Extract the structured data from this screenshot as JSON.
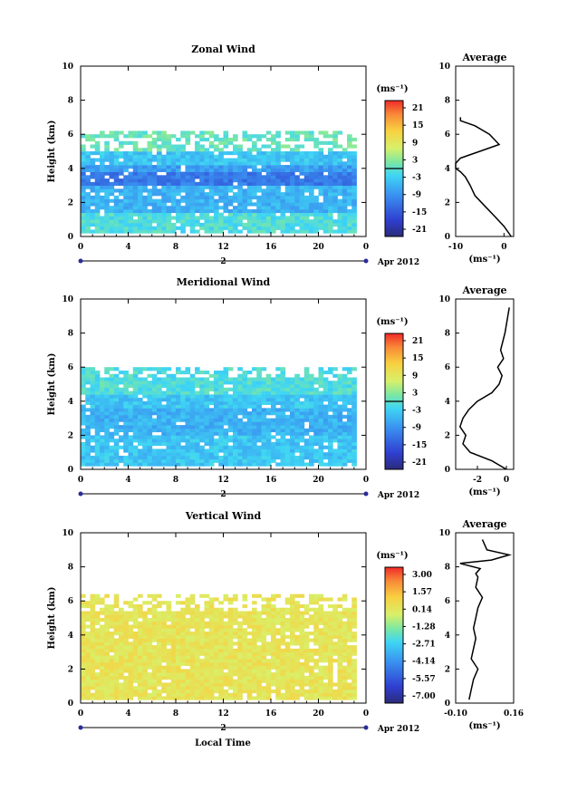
{
  "panels": [
    {
      "title": "Zonal Wind",
      "ylabel": "Height (km)",
      "yticks": [
        "0",
        "2",
        "4",
        "6",
        "8",
        "10"
      ],
      "xticks": [
        "0",
        "4",
        "8",
        "12",
        "16",
        "20",
        "0"
      ],
      "day": "2",
      "date": "Apr 2012",
      "colorbar": {
        "unit": "(ms⁻¹)",
        "labels": [
          "21",
          "15",
          "9",
          "3",
          "-3",
          "-9",
          "-15",
          "-21"
        ],
        "range": [
          -24,
          24
        ],
        "zero_line": 0
      },
      "average": {
        "title": "Average",
        "xticks": [
          "-10",
          "0"
        ],
        "xrange": [
          -10,
          2
        ],
        "unit": "(ms⁻¹)",
        "yticks": [
          "0",
          "2",
          "4",
          "6",
          "8",
          "10"
        ]
      }
    },
    {
      "title": "Meridional Wind",
      "ylabel": "Height (km)",
      "yticks": [
        "0",
        "2",
        "4",
        "6",
        "8",
        "10"
      ],
      "xticks": [
        "0",
        "4",
        "8",
        "12",
        "16",
        "20",
        "0"
      ],
      "day": "2",
      "date": "Apr 2012",
      "colorbar": {
        "unit": "(ms⁻¹)",
        "labels": [
          "21",
          "15",
          "9",
          "3",
          "-3",
          "-9",
          "-15",
          "-21"
        ],
        "range": [
          -24,
          24
        ],
        "zero_line": 0
      },
      "average": {
        "title": "Average",
        "xticks": [
          "-2",
          "0"
        ],
        "xrange": [
          -3.5,
          0.5
        ],
        "unit": "(ms⁻¹)",
        "yticks": [
          "0",
          "2",
          "4",
          "6",
          "8",
          "10"
        ]
      }
    },
    {
      "title": "Vertical Wind",
      "ylabel": "Height (km)",
      "yticks": [
        "0",
        "2",
        "4",
        "6",
        "8",
        "10"
      ],
      "xticks": [
        "0",
        "4",
        "8",
        "12",
        "16",
        "20",
        "0"
      ],
      "day": "2",
      "date": "Apr 2012",
      "colorbar": {
        "unit": "(ms⁻¹)",
        "labels": [
          "3.00",
          "1.57",
          "0.14",
          "-1.28",
          "-2.71",
          "-4.14",
          "-5.57",
          "-7.00"
        ],
        "range": [
          -7.7,
          3.7
        ],
        "zero_line": null
      },
      "average": {
        "title": "Average",
        "xticks": [
          "-0.10",
          "0.16"
        ],
        "xrange": [
          -0.1,
          0.16
        ],
        "unit": "(ms⁻¹)",
        "yticks": [
          "0",
          "2",
          "4",
          "6",
          "8",
          "10"
        ]
      }
    }
  ],
  "xlabel": "Local Time",
  "chart_data": [
    {
      "type": "heatmap",
      "title": "Zonal Wind",
      "xlabel": "Local Time",
      "ylabel": "Height (km)",
      "xlim": [
        0,
        24
      ],
      "ylim": [
        0,
        10
      ],
      "value_range": [
        -24,
        24
      ],
      "layers": [
        {
          "z_from": 0.3,
          "z_to": 1.5,
          "value": -1,
          "note_value_ms": -1
        },
        {
          "z_from": 1.5,
          "z_to": 3.0,
          "value": -6
        },
        {
          "z_from": 3.0,
          "z_to": 3.8,
          "value": -12
        },
        {
          "z_from": 3.8,
          "z_to": 4.3,
          "value": -8
        },
        {
          "z_from": 4.3,
          "z_to": 5.0,
          "value": -4
        },
        {
          "z_from": 5.0,
          "z_to": 6.2,
          "value": 1
        }
      ],
      "coverage_top_km": 6.2,
      "data_hours": [
        0,
        23
      ]
    },
    {
      "type": "line",
      "title": "Average",
      "x": [
        1.5,
        0,
        -2,
        -4,
        -6,
        -7,
        -8,
        -9,
        -10,
        -10,
        -9,
        -5,
        -1,
        -3,
        -6,
        -9,
        -9
      ],
      "y": [
        0,
        0.6,
        1.2,
        1.8,
        2.4,
        3.0,
        3.5,
        3.8,
        4.0,
        4.3,
        4.6,
        5.0,
        5.4,
        6.0,
        6.5,
        6.8,
        7.0
      ],
      "xlim": [
        -10,
        2
      ],
      "ylim": [
        0,
        10
      ]
    },
    {
      "type": "heatmap",
      "title": "Meridional Wind",
      "xlabel": "Local Time",
      "ylabel": "Height (km)",
      "xlim": [
        0,
        24
      ],
      "ylim": [
        0,
        10
      ],
      "value_range": [
        -24,
        24
      ],
      "layers": [
        {
          "z_from": 0.3,
          "z_to": 2.0,
          "value": -4
        },
        {
          "z_from": 2.0,
          "z_to": 3.6,
          "value": -6
        },
        {
          "z_from": 3.6,
          "z_to": 4.5,
          "value": -4
        },
        {
          "z_from": 4.5,
          "z_to": 6.0,
          "value": -1
        }
      ],
      "coverage_top_km": 6.5,
      "data_hours": [
        0,
        23
      ]
    },
    {
      "type": "line",
      "title": "Average",
      "x": [
        0,
        -1,
        -2.5,
        -3,
        -2.8,
        -3.2,
        -3,
        -2.6,
        -2,
        -1,
        -0.5,
        -0.3,
        -0.6,
        -0.2,
        -0.4,
        -0.1,
        0.2
      ],
      "y": [
        0,
        0.5,
        1.0,
        1.5,
        2.0,
        2.5,
        3.0,
        3.5,
        4.0,
        4.5,
        5.0,
        5.5,
        6.0,
        6.5,
        7.0,
        8.0,
        9.5
      ],
      "xlim": [
        -3.5,
        0.5
      ],
      "ylim": [
        0,
        10
      ]
    },
    {
      "type": "heatmap",
      "title": "Vertical Wind",
      "xlabel": "Local Time",
      "ylabel": "Height (km)",
      "xlim": [
        0,
        24
      ],
      "ylim": [
        0,
        10
      ],
      "value_range": [
        -7.7,
        3.7
      ],
      "layers": [
        {
          "z_from": 0.3,
          "z_to": 6.5,
          "value": 0.3
        }
      ],
      "coverage_top_km": 6.5,
      "data_hours": [
        0,
        23
      ]
    },
    {
      "type": "line",
      "title": "Average",
      "x": [
        -0.04,
        -0.03,
        -0.02,
        0.0,
        -0.03,
        -0.02,
        -0.01,
        -0.02,
        -0.01,
        0.0,
        0.02,
        -0.01,
        0.0,
        -0.01,
        0.01,
        -0.08,
        0.06,
        0.14,
        0.04,
        0.02
      ],
      "y": [
        0.2,
        0.8,
        1.4,
        2.0,
        2.6,
        3.2,
        3.8,
        4.4,
        5.0,
        5.6,
        6.2,
        6.8,
        7.4,
        7.6,
        7.9,
        8.2,
        8.4,
        8.7,
        9.0,
        9.6
      ],
      "xlim": [
        -0.1,
        0.16
      ],
      "ylim": [
        0,
        10
      ]
    }
  ]
}
